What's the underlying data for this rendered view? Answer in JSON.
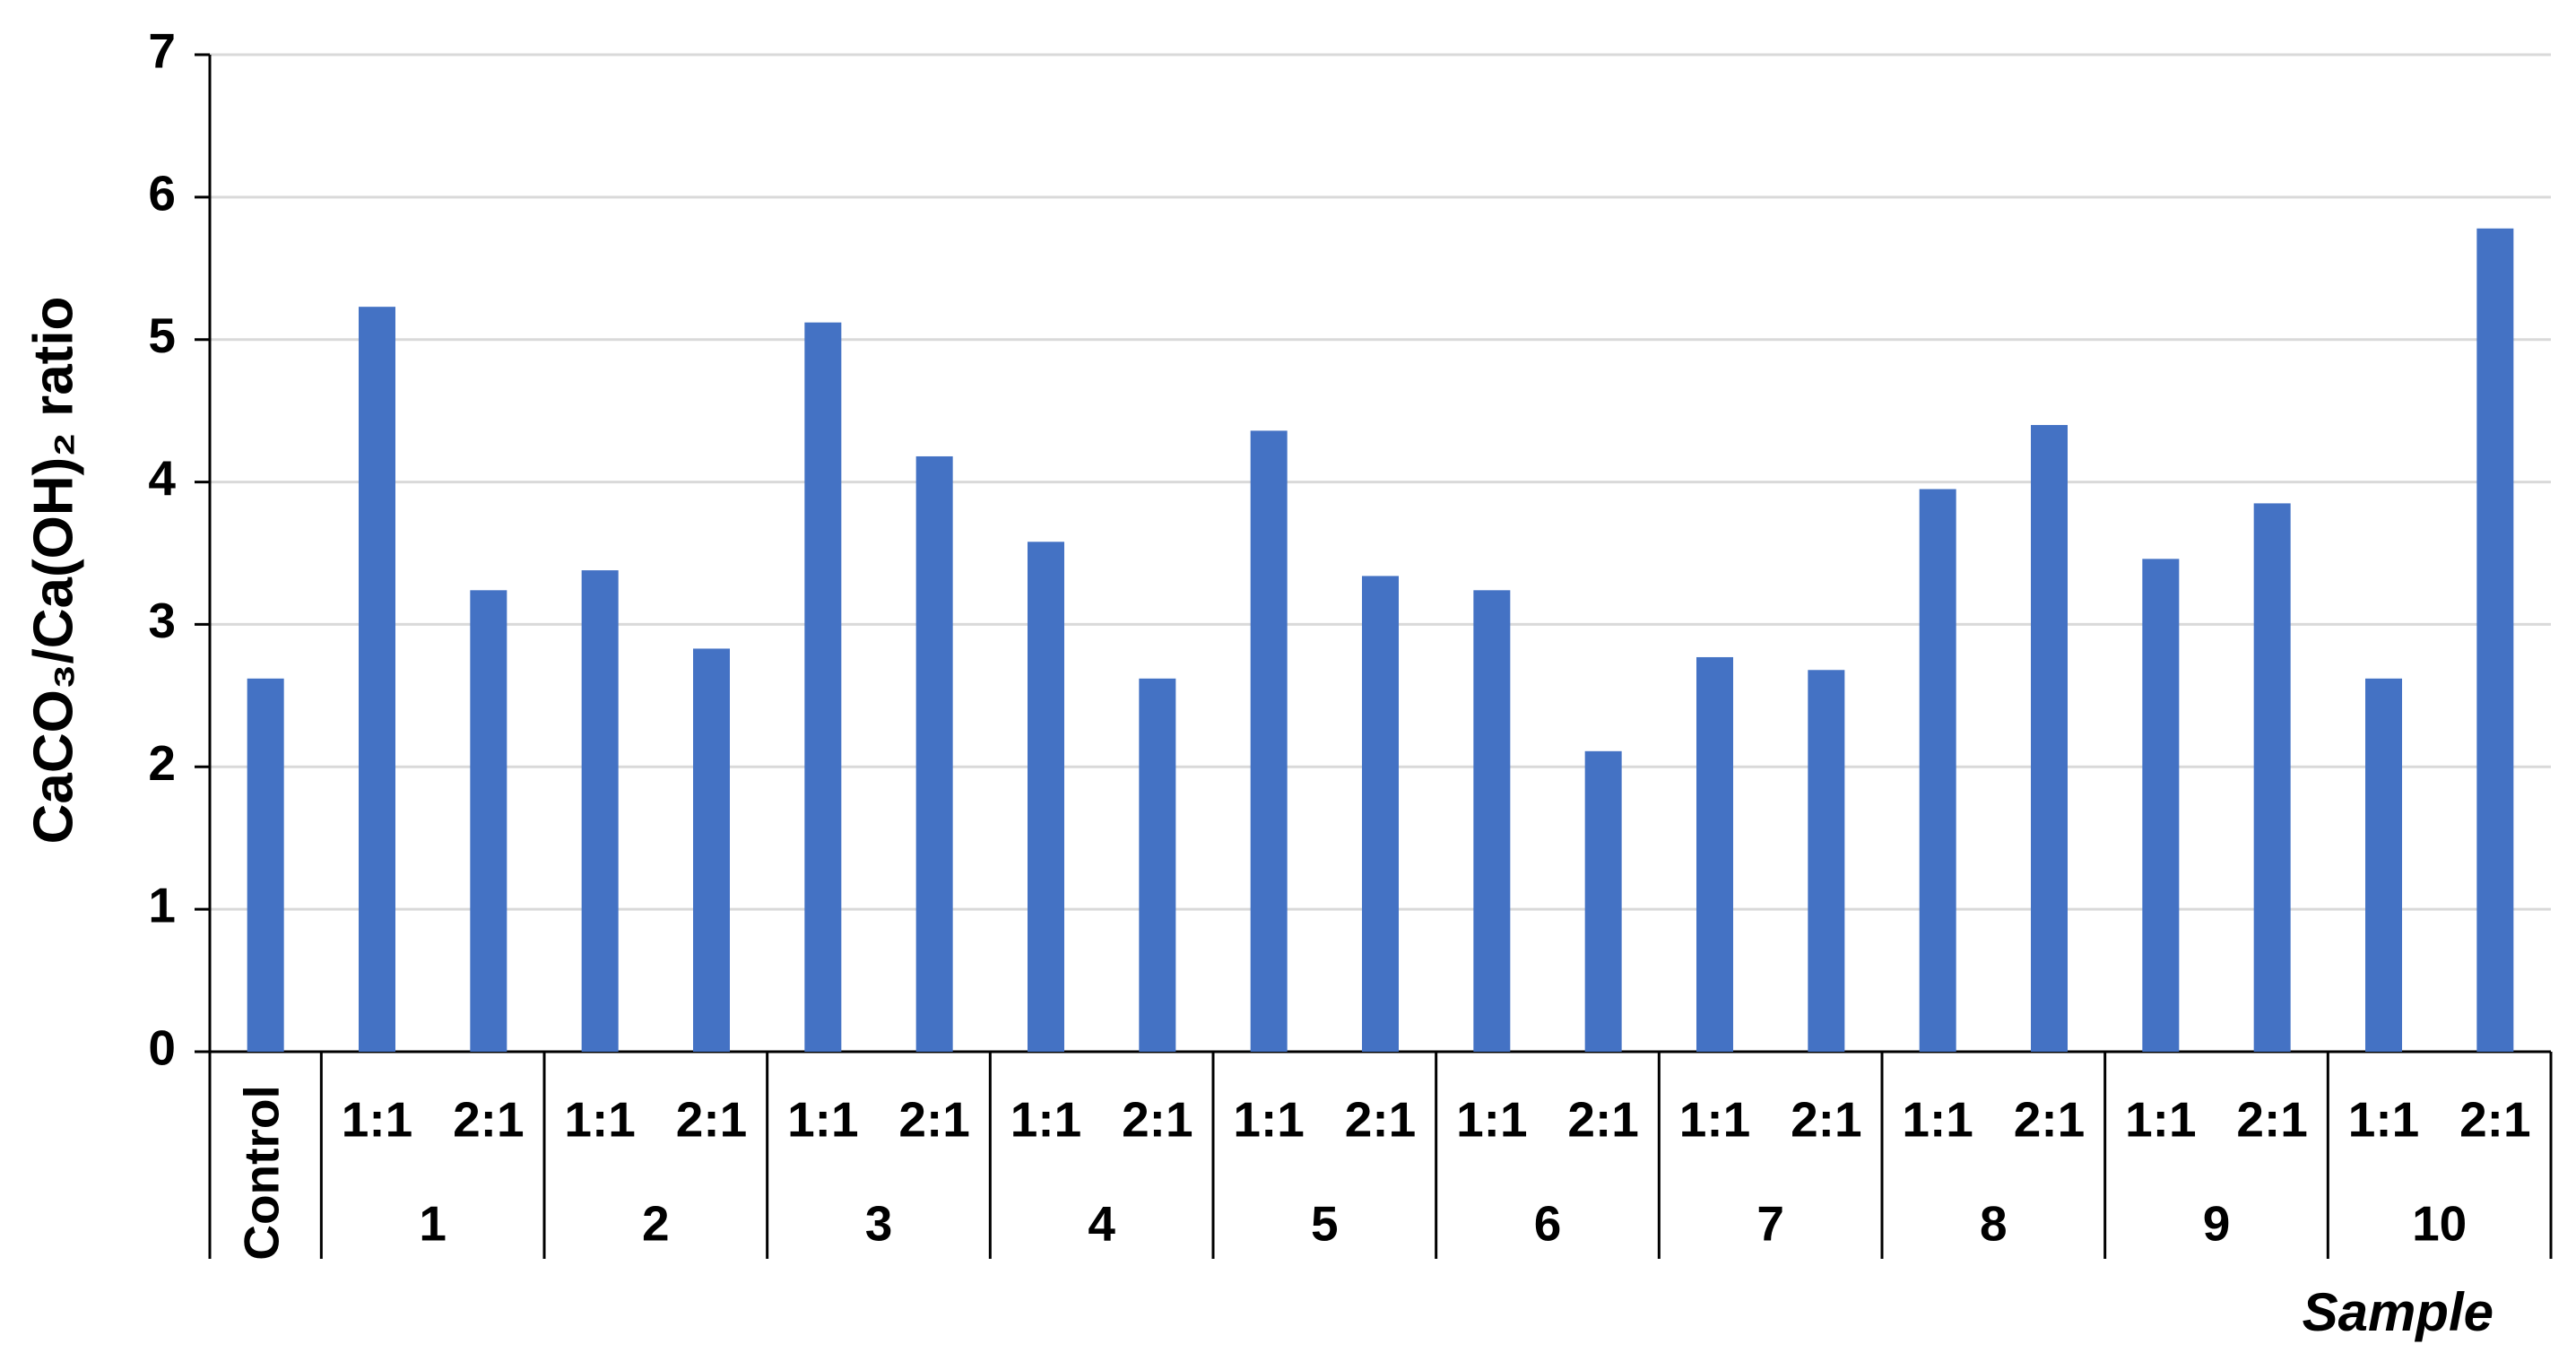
{
  "chart_data": {
    "type": "bar",
    "y_label": "CaCO₃/Ca(OH)₂ ratio",
    "x_label": "Sample",
    "categories": [
      "Control",
      "1:1",
      "2:1",
      "1:1",
      "2:1",
      "1:1",
      "2:1",
      "1:1",
      "2:1",
      "1:1",
      "2:1",
      "1:1",
      "2:1",
      "1:1",
      "2:1",
      "1:1",
      "2:1",
      "1:1",
      "2:1",
      "1:1",
      "2:1"
    ],
    "groups": [
      "1",
      "2",
      "3",
      "4",
      "5",
      "6",
      "7",
      "8",
      "9",
      "10"
    ],
    "values": [
      2.62,
      5.23,
      3.24,
      3.38,
      2.83,
      5.12,
      4.18,
      3.58,
      2.62,
      4.36,
      3.34,
      3.24,
      2.11,
      2.77,
      2.68,
      3.95,
      4.4,
      3.46,
      3.85,
      2.62,
      5.78
    ],
    "color": "#4472c4",
    "ylim": [
      0,
      7
    ],
    "yticks": [
      0,
      1,
      2,
      3,
      4,
      5,
      6,
      7
    ],
    "grid": true
  }
}
